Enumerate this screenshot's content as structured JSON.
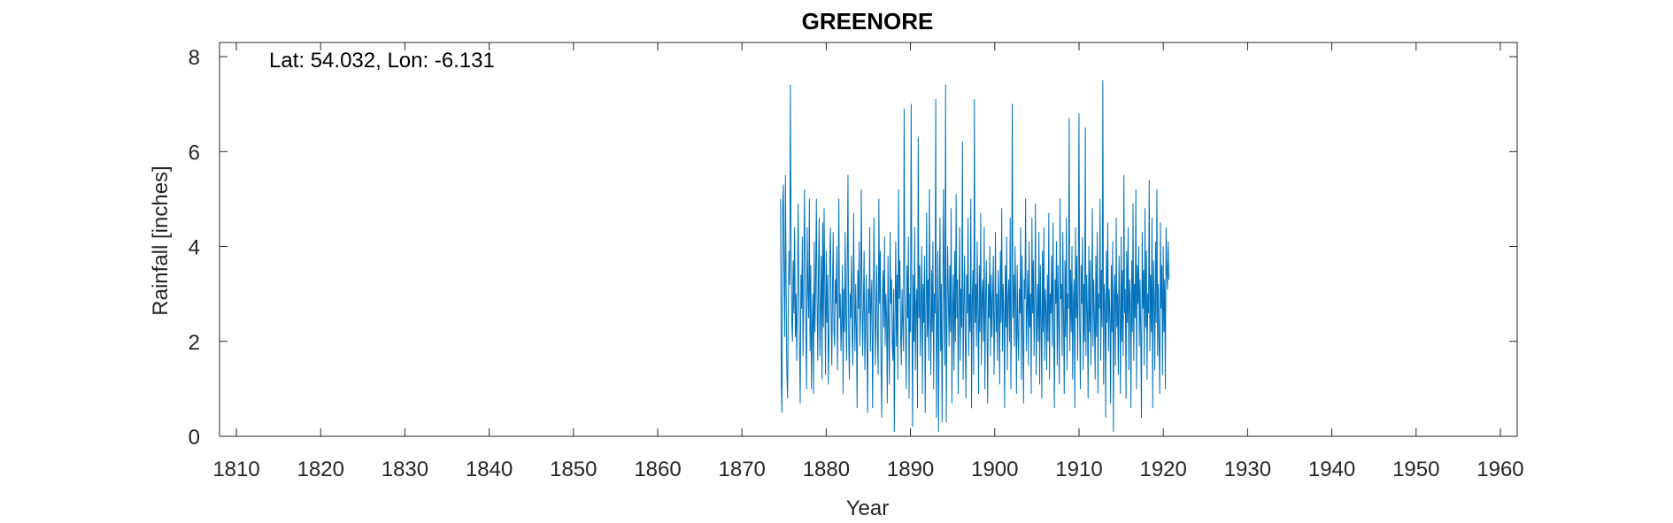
{
  "chart_data": {
    "type": "line",
    "title": "GREENORE",
    "annotation": "Lat: 54.032, Lon: -6.131",
    "xlabel": "Year",
    "ylabel": "Rainfall [inches]",
    "xlim": [
      1808,
      1962
    ],
    "ylim": [
      0,
      8.3
    ],
    "xticks": [
      1810,
      1820,
      1830,
      1840,
      1850,
      1860,
      1870,
      1880,
      1890,
      1900,
      1910,
      1920,
      1930,
      1940,
      1950,
      1960
    ],
    "yticks": [
      0,
      2,
      4,
      6,
      8
    ],
    "grid": false,
    "box": true,
    "series": [
      {
        "color": "#0072BD",
        "x_start": 1874.58,
        "x_step": 0.08333,
        "values": [
          5.0,
          1.1,
          0.5,
          4.8,
          5.3,
          3.5,
          2.1,
          5.5,
          3.0,
          1.3,
          0.8,
          2.6,
          3.9,
          3.2,
          7.4,
          4.1,
          2.4,
          2.0,
          3.7,
          2.6,
          4.4,
          2.1,
          3.0,
          1.6,
          2.8,
          4.9,
          3.3,
          1.9,
          0.7,
          3.4,
          2.7,
          4.2,
          1.7,
          2.9,
          5.2,
          3.8,
          2.2,
          1.0,
          4.4,
          3.1,
          2.5,
          5.0,
          1.8,
          3.6,
          1.0,
          2.3,
          3.0,
          0.9,
          4.1,
          2.2,
          3.3,
          5.0,
          2.8,
          1.6,
          3.5,
          4.6,
          1.7,
          2.6,
          3.8,
          1.2,
          4.5,
          2.3,
          4.8,
          3.1,
          1.3,
          3.9,
          2.4,
          3.4,
          1.1,
          2.1,
          3.7,
          4.4,
          2.6,
          1.5,
          3.2,
          4.3,
          2.2,
          1.9,
          3.3,
          2.8,
          4.0,
          1.4,
          2.7,
          5.0,
          2.5,
          3.0,
          1.8,
          2.4,
          3.6,
          0.9,
          3.1,
          2.2,
          4.3,
          2.6,
          1.6,
          3.7,
          5.5,
          2.0,
          1.2,
          3.0,
          2.5,
          3.8,
          2.1,
          1.5,
          4.7,
          2.9,
          1.8,
          3.2,
          2.3,
          0.6,
          3.5,
          2.7,
          4.1,
          1.9,
          2.6,
          5.2,
          3.0,
          1.7,
          2.8,
          3.9,
          1.4,
          2.2,
          3.4,
          2.0,
          0.5,
          3.1,
          2.6,
          4.4,
          1.8,
          2.9,
          3.3,
          0.6,
          2.4,
          4.6,
          3.1,
          1.5,
          2.7,
          3.6,
          2.1,
          1.3,
          5.0,
          2.8,
          3.9,
          1.6,
          0.4,
          2.7,
          3.5,
          2.3,
          4.2,
          1.9,
          3.0,
          2.5,
          0.7,
          3.8,
          2.2,
          1.1,
          4.3,
          2.8,
          3.3,
          2.0,
          1.6,
          3.1,
          0.1,
          2.6,
          4.1,
          1.9,
          3.4,
          1.2,
          5.2,
          2.9,
          3.7,
          2.2,
          1.5,
          3.1,
          2.4,
          1.8,
          6.9,
          3.2,
          2.0,
          1.0,
          3.6,
          2.5,
          4.2,
          0.8,
          3.0,
          2.2,
          7.0,
          2.7,
          0.2,
          3.4,
          2.0,
          4.4,
          1.4,
          2.8,
          3.1,
          0.6,
          6.3,
          2.5,
          3.6,
          1.7,
          2.9,
          4.0,
          0.9,
          3.2,
          2.4,
          3.8,
          0.5,
          2.6,
          4.7,
          2.1,
          3.3,
          1.6,
          5.2,
          2.8,
          1.3,
          3.5,
          2.2,
          4.1,
          1.0,
          3.0,
          2.6,
          7.1,
          0.4,
          2.3,
          3.9,
          0.1,
          2.8,
          4.6,
          1.8,
          3.2,
          0.3,
          2.6,
          5.2,
          3.0,
          1.5,
          7.4,
          0.3,
          2.4,
          4.0,
          2.9,
          1.9,
          3.6,
          2.2,
          4.8,
          0.7,
          2.6,
          3.4,
          1.4,
          3.9,
          2.0,
          5.1,
          2.5,
          3.3,
          0.9,
          2.8,
          4.4,
          1.6,
          3.1,
          2.3,
          6.2,
          1.2,
          2.7,
          3.8,
          2.1,
          0.8,
          3.4,
          2.6,
          4.6,
          1.7,
          3.0,
          2.2,
          5.0,
          0.6,
          2.9,
          3.5,
          1.3,
          7.1,
          2.4,
          3.2,
          1.9,
          4.1,
          2.7,
          0.9,
          3.6,
          2.2,
          4.7,
          1.5,
          2.9,
          3.3,
          2.0,
          4.4,
          1.0,
          2.8,
          3.7,
          2.3,
          0.7,
          3.2,
          2.5,
          4.0,
          1.7,
          3.4,
          2.1,
          2.9,
          3.8,
          1.3,
          2.6,
          4.3,
          2.2,
          3.0,
          1.6,
          3.5,
          2.8,
          1.1,
          3.9,
          2.4,
          4.8,
          1.8,
          3.2,
          2.6,
          0.6,
          3.6,
          2.3,
          4.2,
          1.4,
          2.9,
          3.3,
          2.0,
          4.6,
          1.0,
          2.7,
          7.0,
          2.5,
          3.4,
          1.9,
          4.0,
          2.8,
          0.9,
          3.6,
          2.2,
          1.6,
          3.1,
          2.6,
          4.4,
          1.2,
          3.8,
          2.4,
          0.7,
          3.3,
          2.9,
          5.0,
          1.8,
          2.7,
          3.5,
          1.5,
          4.1,
          2.3,
          3.0,
          0.9,
          4.6,
          2.6,
          3.7,
          1.7,
          2.9,
          4.9,
          1.3,
          2.4,
          3.2,
          2.0,
          4.3,
          1.1,
          3.6,
          2.5,
          0.8,
          3.9,
          2.2,
          4.4,
          1.6,
          3.1,
          2.7,
          1.4,
          3.4,
          2.0,
          4.7,
          1.2,
          3.0,
          2.6,
          3.8,
          1.9,
          4.5,
          2.3,
          0.6,
          3.3,
          2.8,
          4.1,
          1.5,
          3.6,
          2.4,
          1.1,
          5.0,
          2.9,
          3.2,
          1.7,
          4.3,
          2.5,
          0.9,
          3.7,
          2.1,
          4.6,
          1.4,
          3.0,
          2.7,
          6.7,
          1.8,
          3.5,
          2.2,
          4.0,
          1.2,
          2.9,
          3.3,
          0.6,
          4.4,
          2.5,
          3.8,
          1.6,
          3.1,
          6.8,
          2.3,
          1.0,
          3.6,
          2.8,
          4.2,
          1.4,
          3.2,
          2.0,
          6.5,
          1.7,
          3.4,
          2.6,
          0.8,
          4.0,
          2.2,
          3.7,
          1.5,
          2.9,
          4.8,
          1.9,
          3.3,
          2.5,
          1.2,
          3.8,
          2.1,
          4.3,
          0.9,
          3.0,
          2.7,
          5.0,
          1.6,
          3.5,
          2.3,
          7.5,
          1.1,
          3.2,
          2.8,
          0.4,
          3.9,
          2.4,
          4.5,
          1.8,
          3.1,
          2.6,
          0.7,
          3.6,
          2.2,
          4.1,
          0.1,
          2.9,
          3.4,
          1.5,
          4.6,
          2.3,
          3.0,
          1.3,
          3.8,
          2.7,
          0.9,
          4.2,
          2.0,
          3.5,
          1.7,
          5.5,
          2.6,
          3.1,
          0.8,
          3.9,
          2.4,
          4.4,
          1.4,
          3.3,
          2.9,
          0.6,
          3.7,
          2.2,
          4.9,
          1.6,
          3.2,
          2.5,
          5.2,
          1.0,
          3.6,
          2.8,
          4.0,
          1.9,
          3.3,
          2.1,
          0.4,
          4.3,
          2.7,
          3.5,
          1.5,
          4.8,
          2.3,
          3.9,
          1.2,
          3.0,
          2.6,
          5.4,
          1.8,
          3.4,
          2.2,
          4.6,
          0.6,
          3.7,
          2.9,
          1.4,
          4.1,
          2.4,
          5.2,
          1.7,
          3.2,
          2.0,
          0.9,
          4.5,
          2.7,
          3.6,
          1.3,
          4.0,
          2.2,
          3.3,
          1.0,
          4.4,
          3.5,
          3.1,
          4.1,
          3.3
        ]
      }
    ]
  }
}
